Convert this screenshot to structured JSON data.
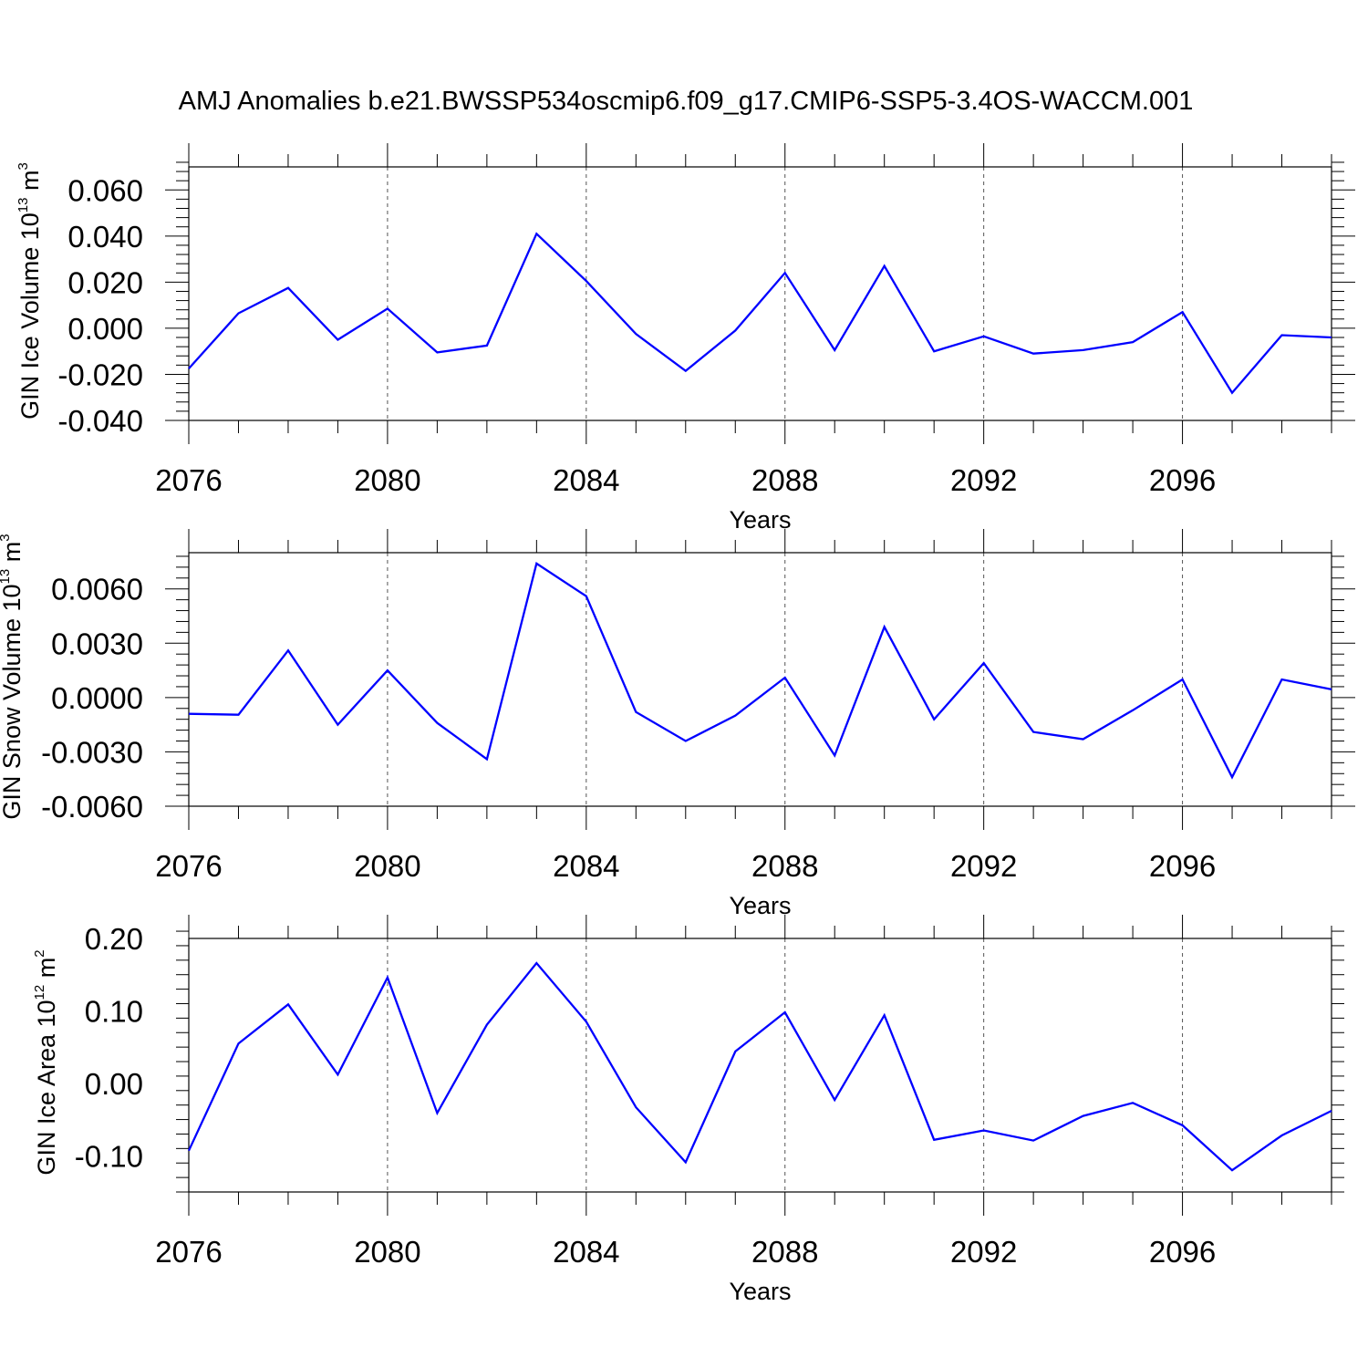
{
  "figure": {
    "title": "AMJ Anomalies b.e21.BWSSP534oscmip6.f09_g17.CMIP6-SSP5-3.4OS-WACCM.001"
  },
  "chart_data": [
    {
      "type": "line",
      "ylabel": {
        "text": "GIN Ice Volume 10",
        "sup": "13",
        "unit": " m",
        "unit_sup": "3"
      },
      "xlabel": "Years",
      "xlim": [
        2076,
        2099
      ],
      "ylim": [
        -0.04,
        0.07
      ],
      "xticks": [
        2076,
        2080,
        2084,
        2088,
        2092,
        2096
      ],
      "xtick_labels": [
        "2076",
        "2080",
        "2084",
        "2088",
        "2092",
        "2096"
      ],
      "yticks": [
        -0.04,
        -0.02,
        0.0,
        0.02,
        0.04,
        0.06
      ],
      "ytick_labels": [
        "-0.040",
        "-0.020",
        "0.000",
        "0.020",
        "0.040",
        "0.060"
      ],
      "grid": "vertical dashed at major x ticks",
      "series": [
        {
          "color": "#0000ff",
          "x": [
            2076,
            2077,
            2078,
            2079,
            2080,
            2081,
            2082,
            2083,
            2084,
            2085,
            2086,
            2087,
            2088,
            2089,
            2090,
            2091,
            2092,
            2093,
            2094,
            2095,
            2096,
            2097,
            2098,
            2099
          ],
          "y": [
            -0.0175,
            0.0065,
            0.0175,
            -0.005,
            0.0085,
            -0.0105,
            -0.0075,
            0.041,
            0.0205,
            -0.0025,
            -0.0185,
            -0.001,
            0.024,
            -0.0095,
            0.027,
            -0.01,
            -0.0035,
            -0.011,
            -0.0095,
            -0.006,
            0.007,
            -0.028,
            -0.003,
            -0.004
          ]
        }
      ]
    },
    {
      "type": "line",
      "ylabel": {
        "text": "GIN Snow Volume 10",
        "sup": "13",
        "unit": " m",
        "unit_sup": "3"
      },
      "xlabel": "Years",
      "xlim": [
        2076,
        2099
      ],
      "ylim": [
        -0.006,
        0.008
      ],
      "xticks": [
        2076,
        2080,
        2084,
        2088,
        2092,
        2096
      ],
      "xtick_labels": [
        "2076",
        "2080",
        "2084",
        "2088",
        "2092",
        "2096"
      ],
      "yticks": [
        -0.006,
        -0.003,
        0.0,
        0.003,
        0.006
      ],
      "ytick_labels": [
        "-0.0060",
        "-0.0030",
        "0.0000",
        "0.0030",
        "0.0060"
      ],
      "grid": "vertical dashed at major x ticks",
      "series": [
        {
          "color": "#0000ff",
          "x": [
            2076,
            2077,
            2078,
            2079,
            2080,
            2081,
            2082,
            2083,
            2084,
            2085,
            2086,
            2087,
            2088,
            2089,
            2090,
            2091,
            2092,
            2093,
            2094,
            2095,
            2096,
            2097,
            2098,
            2099
          ],
          "y": [
            -0.0009,
            -0.00095,
            0.0026,
            -0.0015,
            0.0015,
            -0.0014,
            -0.0034,
            0.0074,
            0.0056,
            -0.0008,
            -0.0024,
            -0.001,
            0.0011,
            -0.0032,
            0.0039,
            -0.0012,
            0.0019,
            -0.0019,
            -0.0023,
            -0.0007,
            0.001,
            -0.0044,
            0.001,
            0.00045
          ]
        }
      ]
    },
    {
      "type": "line",
      "ylabel": {
        "text": "GIN Ice Area 10",
        "sup": "12",
        "unit": " m",
        "unit_sup": "2"
      },
      "xlabel": "Years",
      "xlim": [
        2076,
        2099
      ],
      "ylim": [
        -0.15,
        0.2
      ],
      "xticks": [
        2076,
        2080,
        2084,
        2088,
        2092,
        2096
      ],
      "xtick_labels": [
        "2076",
        "2080",
        "2084",
        "2088",
        "2092",
        "2096"
      ],
      "yticks": [
        -0.1,
        0.0,
        0.1,
        0.2
      ],
      "ytick_labels": [
        "-0.10",
        "0.00",
        "0.10",
        "0.20"
      ],
      "grid": "vertical dashed at major x ticks",
      "series": [
        {
          "color": "#0000ff",
          "x": [
            2076,
            2077,
            2078,
            2079,
            2080,
            2081,
            2082,
            2083,
            2084,
            2085,
            2086,
            2087,
            2088,
            2089,
            2090,
            2091,
            2092,
            2093,
            2094,
            2095,
            2096,
            2097,
            2098,
            2099
          ],
          "y": [
            -0.093,
            0.055,
            0.109,
            0.012,
            0.146,
            -0.041,
            0.081,
            0.166,
            0.085,
            -0.033,
            -0.109,
            0.044,
            0.098,
            -0.023,
            0.094,
            -0.078,
            -0.065,
            -0.079,
            -0.045,
            -0.027,
            -0.058,
            -0.12,
            -0.072,
            -0.038
          ]
        }
      ]
    }
  ]
}
